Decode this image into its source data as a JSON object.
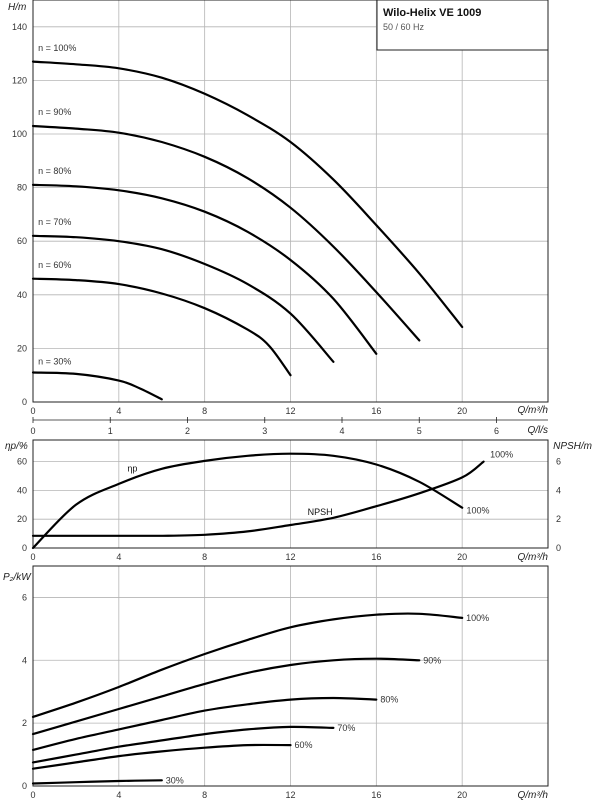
{
  "title": "Wilo-Helix VE 1009",
  "subtitle": "50 / 60 Hz",
  "chart_data": [
    {
      "id": "head",
      "type": "line",
      "ylabel": "H/m",
      "xlabel": "Q/m³/h",
      "xlim": [
        0,
        24
      ],
      "ylim": [
        0,
        150
      ],
      "xticks": [
        0,
        4,
        8,
        12,
        16,
        20
      ],
      "yticks": [
        0,
        20,
        40,
        60,
        80,
        100,
        120,
        140
      ],
      "secondary_x": {
        "label": "Q/l/s",
        "ticks": [
          0,
          1,
          2,
          3,
          4,
          5,
          6
        ]
      },
      "grid": true,
      "series": [
        {
          "name": "n = 100%",
          "label_pos": [
            0.1,
            131
          ],
          "x": [
            0,
            2,
            4,
            6,
            8,
            10,
            12,
            14,
            16,
            18,
            20
          ],
          "y": [
            127,
            126,
            124.5,
            121,
            115,
            107,
            97,
            83,
            66,
            48,
            28
          ]
        },
        {
          "name": "n = 90%",
          "label_pos": [
            0.1,
            107
          ],
          "x": [
            0,
            2,
            4,
            6,
            8,
            10,
            12,
            14,
            16,
            18
          ],
          "y": [
            103,
            102,
            100.5,
            97,
            91.5,
            83.5,
            72.5,
            58,
            41,
            23
          ]
        },
        {
          "name": "n = 80%",
          "label_pos": [
            0.1,
            85
          ],
          "x": [
            0,
            2,
            4,
            6,
            8,
            10,
            12,
            14,
            16
          ],
          "y": [
            81,
            80.5,
            79,
            76,
            71,
            63.5,
            53,
            38.5,
            18
          ]
        },
        {
          "name": "n = 70%",
          "label_pos": [
            0.1,
            66
          ],
          "x": [
            0,
            2,
            4,
            6,
            8,
            10,
            12,
            14
          ],
          "y": [
            62,
            61.5,
            60,
            57,
            51.5,
            44,
            33,
            15
          ]
        },
        {
          "name": "n = 60%",
          "label_pos": [
            0.1,
            50
          ],
          "x": [
            0,
            2,
            4,
            6,
            8,
            10,
            11,
            12
          ],
          "y": [
            46,
            45.5,
            44,
            40.5,
            35,
            27,
            21,
            10
          ]
        },
        {
          "name": "n = 30%",
          "label_pos": [
            0.1,
            14
          ],
          "x": [
            0,
            2,
            4,
            5,
            6
          ],
          "y": [
            11,
            10.5,
            8,
            5,
            1
          ]
        }
      ]
    },
    {
      "id": "efficiency-npsh",
      "type": "line",
      "ylabel": "ηp/%",
      "ylabel_right": "NPSH/m",
      "xlabel": "Q/m³/h",
      "xlim": [
        0,
        24
      ],
      "ylim": [
        0,
        75
      ],
      "ylim_right": [
        0,
        7.5
      ],
      "xticks": [
        0,
        4,
        8,
        12,
        16,
        20
      ],
      "yticks": [
        0,
        20,
        40,
        60
      ],
      "yticks_right": [
        0,
        2,
        4,
        6
      ],
      "grid": true,
      "series": [
        {
          "name": "ηp",
          "axis": "left",
          "curve_label": "100%",
          "label_pos": [
            4.4,
            53
          ],
          "end_label_pos": [
            20.2,
            24
          ],
          "x": [
            0,
            2,
            4,
            6,
            8,
            10,
            12,
            14,
            16,
            18,
            20
          ],
          "y": [
            0,
            30,
            44.5,
            55,
            60.5,
            64,
            65.5,
            64,
            58,
            46,
            28
          ]
        },
        {
          "name": "NPSH",
          "axis": "right",
          "curve_label": "100%",
          "label_pos": [
            12.8,
            2.3
          ],
          "end_label_pos": [
            21.3,
            6.3
          ],
          "x": [
            0,
            2,
            4,
            6,
            8,
            10,
            12,
            14,
            16,
            18,
            20,
            21
          ],
          "y": [
            0.85,
            0.85,
            0.85,
            0.85,
            0.92,
            1.15,
            1.6,
            2.1,
            2.9,
            3.8,
            4.9,
            6
          ]
        }
      ]
    },
    {
      "id": "power",
      "type": "line",
      "ylabel": "P₂/kW",
      "xlabel": "Q/m³/h",
      "xlim": [
        0,
        24
      ],
      "ylim": [
        0,
        7
      ],
      "xticks": [
        0,
        4,
        8,
        12,
        16,
        20
      ],
      "yticks": [
        0,
        2,
        4,
        6
      ],
      "grid": true,
      "series": [
        {
          "name": "100%",
          "x": [
            0,
            2,
            4,
            6,
            8,
            10,
            12,
            14,
            16,
            18,
            20
          ],
          "y": [
            2.2,
            2.65,
            3.15,
            3.7,
            4.2,
            4.65,
            5.05,
            5.3,
            5.45,
            5.48,
            5.35
          ]
        },
        {
          "name": "90%",
          "x": [
            0,
            2,
            4,
            6,
            8,
            10,
            12,
            14,
            16,
            18
          ],
          "y": [
            1.65,
            2.05,
            2.45,
            2.85,
            3.25,
            3.6,
            3.85,
            4.0,
            4.05,
            4.0
          ]
        },
        {
          "name": "80%",
          "x": [
            0,
            2,
            4,
            6,
            8,
            10,
            12,
            14,
            16
          ],
          "y": [
            1.15,
            1.5,
            1.8,
            2.1,
            2.4,
            2.6,
            2.75,
            2.8,
            2.75
          ]
        },
        {
          "name": "70%",
          "x": [
            0,
            2,
            4,
            6,
            8,
            10,
            12,
            14
          ],
          "y": [
            0.75,
            1.0,
            1.25,
            1.45,
            1.65,
            1.8,
            1.88,
            1.85
          ]
        },
        {
          "name": "60%",
          "x": [
            0,
            2,
            4,
            6,
            8,
            10,
            12
          ],
          "y": [
            0.55,
            0.75,
            0.95,
            1.1,
            1.22,
            1.3,
            1.3
          ]
        },
        {
          "name": "30%",
          "x": [
            0,
            2,
            4,
            6
          ],
          "y": [
            0.08,
            0.12,
            0.16,
            0.18
          ]
        }
      ]
    }
  ]
}
